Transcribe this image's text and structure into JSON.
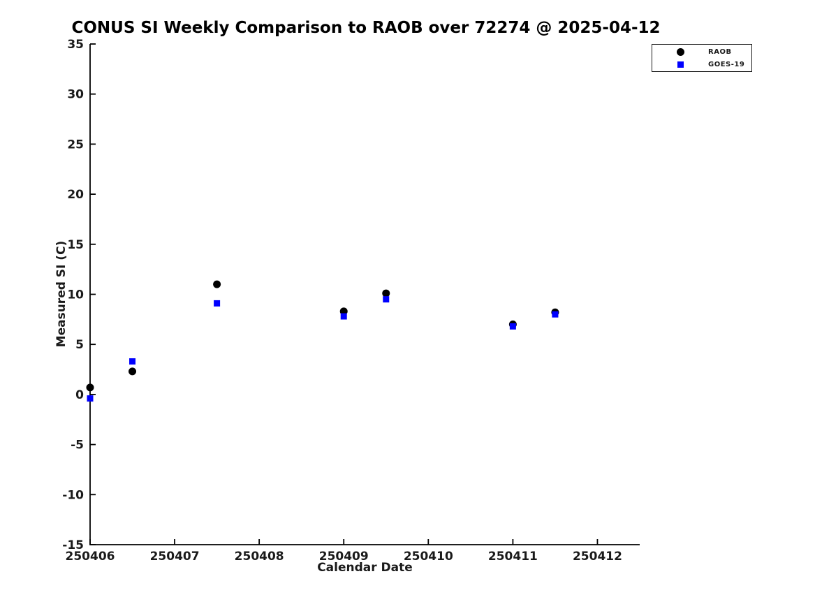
{
  "chart_data": {
    "type": "scatter",
    "title": "CONUS SI Weekly Comparison to RAOB over 72274 @ 2025-04-12",
    "xlabel": "Calendar Date",
    "ylabel": "Measured SI (C)",
    "xlim": [
      250406,
      250412.5
    ],
    "ylim": [
      -15,
      35
    ],
    "xticks": [
      250406,
      250407,
      250408,
      250409,
      250410,
      250411,
      250412
    ],
    "xtick_labels": [
      "250406",
      "250407",
      "250408",
      "250409",
      "250410",
      "250411",
      "250412"
    ],
    "yticks": [
      -15,
      -10,
      -5,
      0,
      5,
      10,
      15,
      20,
      25,
      30,
      35
    ],
    "ytick_labels": [
      "-15",
      "-10",
      "-5",
      "0",
      "5",
      "10",
      "15",
      "20",
      "25",
      "30",
      "35"
    ],
    "grid": false,
    "legend_position": "upper right",
    "x": [
      250406.0,
      250406.5,
      250407.5,
      250409.0,
      250409.5,
      250411.0,
      250411.5
    ],
    "series": [
      {
        "name": "RAOB",
        "marker": "circle",
        "color": "#000000",
        "values": [
          0.7,
          2.3,
          11.0,
          8.3,
          10.1,
          7.0,
          8.2
        ]
      },
      {
        "name": "GOES-19",
        "marker": "square",
        "color": "#0000ff",
        "values": [
          -0.4,
          3.3,
          9.1,
          7.8,
          9.5,
          6.8,
          8.0
        ]
      }
    ]
  },
  "colors": {
    "background": "#ffffff",
    "axis": "#000000",
    "tick_text": "#1a1a1a",
    "raob": "#000000",
    "goes19": "#0000ff"
  }
}
